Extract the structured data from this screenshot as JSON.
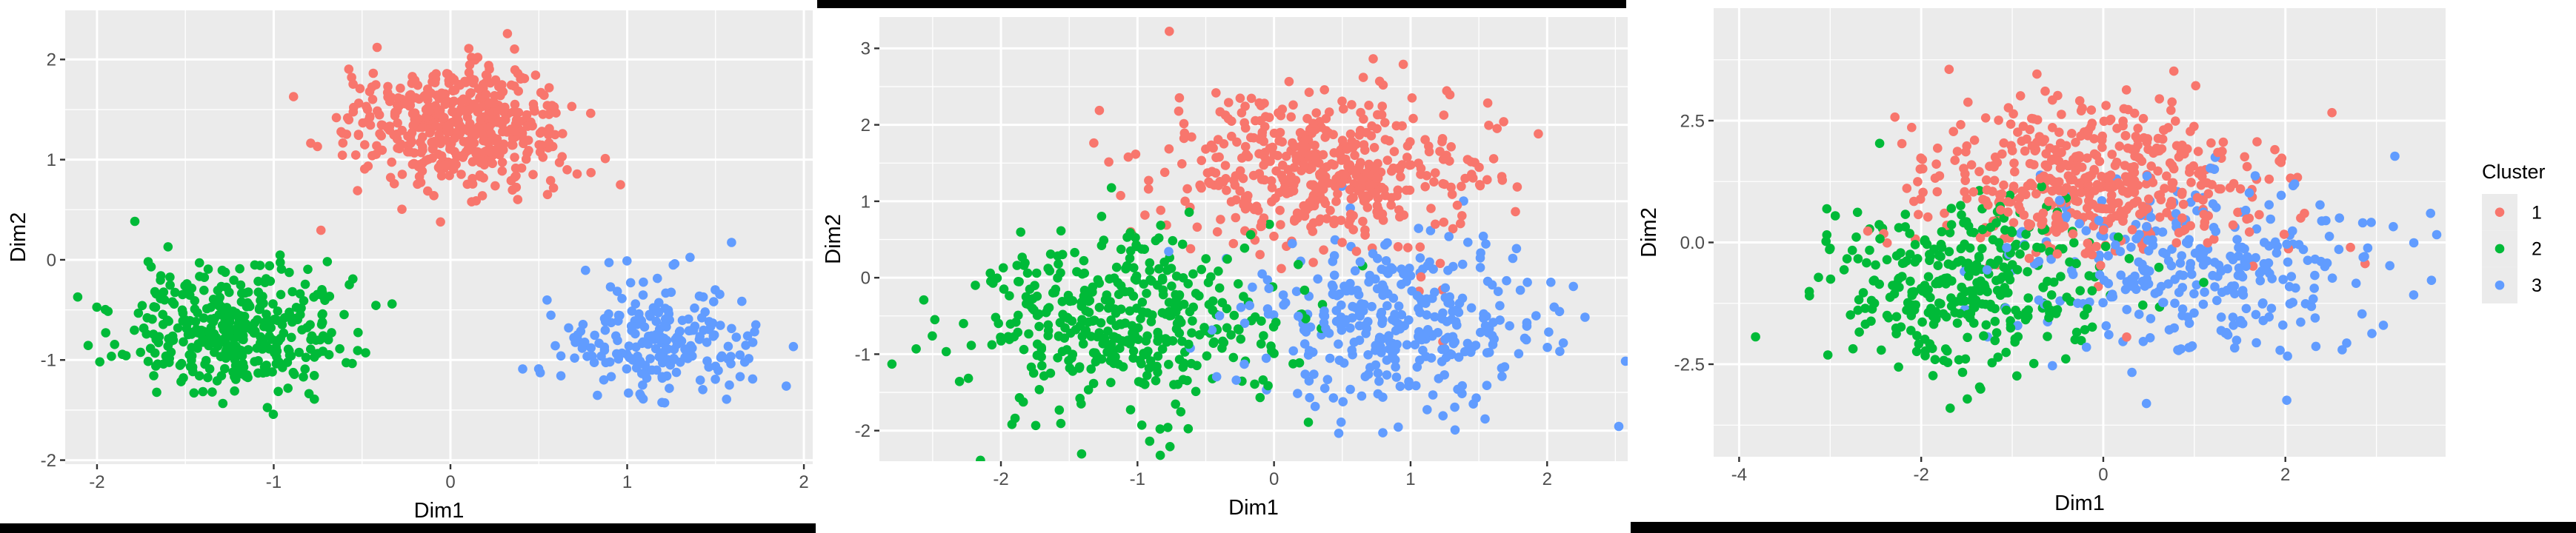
{
  "figure": {
    "background": "#ffffff",
    "panel_background": "#EBEBEB",
    "gridline_color": "#ffffff",
    "tick_text_color": "#4d4d4d",
    "axis_title_color": "#000000"
  },
  "chart_data": [
    {
      "id": "pca-clusters-separated",
      "type": "scatter",
      "xlabel": "Dim1",
      "ylabel": "Dim2",
      "x_ticks": [
        -2,
        -1,
        0,
        1,
        2
      ],
      "y_ticks": [
        2,
        1,
        0,
        -1,
        -2
      ],
      "x_tick_labels": [
        "-2",
        "-1",
        "0",
        "1",
        "2"
      ],
      "y_tick_labels": [
        "2",
        "1",
        "0",
        "-1",
        "-2"
      ],
      "x_range": [
        -2.18,
        2.05
      ],
      "y_range": [
        -2.04,
        2.49
      ],
      "grid": true,
      "legend": null,
      "clusters": [
        {
          "label": "1",
          "color": "#F8766D",
          "n": 490,
          "center": [
            0.07,
            1.33
          ],
          "sd": [
            0.3,
            0.32
          ],
          "stray_frac": 0.0,
          "stray_mult": 1.0,
          "seed": 11
        },
        {
          "label": "2",
          "color": "#00BA38",
          "n": 390,
          "center": [
            -1.24,
            -0.68
          ],
          "sd": [
            0.31,
            0.31
          ],
          "stray_frac": 0.0,
          "stray_mult": 1.0,
          "seed": 22
        },
        {
          "label": "3",
          "color": "#619CFF",
          "n": 215,
          "center": [
            1.17,
            -0.76
          ],
          "sd": [
            0.28,
            0.32
          ],
          "stray_frac": 0.0,
          "stray_mult": 1.0,
          "seed": 33
        }
      ]
    },
    {
      "id": "pca-clusters-overlapping",
      "type": "scatter",
      "xlabel": "Dim1",
      "ylabel": "Dim2",
      "x_ticks": [
        -2,
        -1,
        0,
        1,
        2
      ],
      "y_ticks": [
        3,
        2,
        1,
        0,
        -1,
        -2
      ],
      "x_tick_labels": [
        "-2",
        "-1",
        "0",
        "1",
        "2"
      ],
      "y_tick_labels": [
        "3",
        "2",
        "1",
        "0",
        "-1",
        "-2"
      ],
      "x_range": [
        -2.89,
        2.59
      ],
      "y_range": [
        -2.4,
        3.41
      ],
      "grid": true,
      "legend": null,
      "clusters": [
        {
          "label": "1",
          "color": "#F8766D",
          "n": 480,
          "center": [
            0.35,
            1.42
          ],
          "sd": [
            0.56,
            0.5
          ],
          "stray_frac": 0.015,
          "stray_mult": 1.7,
          "seed": 44
        },
        {
          "label": "2",
          "color": "#00BA38",
          "n": 420,
          "center": [
            -1.1,
            -0.55
          ],
          "sd": [
            0.56,
            0.58
          ],
          "stray_frac": 0.015,
          "stray_mult": 1.8,
          "seed": 55
        },
        {
          "label": "3",
          "color": "#619CFF",
          "n": 330,
          "center": [
            0.9,
            -0.58
          ],
          "sd": [
            0.54,
            0.55
          ],
          "stray_frac": 0.02,
          "stray_mult": 2.2,
          "seed": 66
        }
      ]
    },
    {
      "id": "pca-clusters-heavy-overlap",
      "type": "scatter",
      "xlabel": "Dim1",
      "ylabel": "Dim2",
      "x_ticks": [
        -4,
        -2,
        0,
        2
      ],
      "y_ticks": [
        2.5,
        0,
        -2.5
      ],
      "x_tick_labels": [
        "-4",
        "-2",
        "0",
        "2"
      ],
      "y_tick_labels": [
        "2.5",
        "0.0",
        "-2.5"
      ],
      "x_range": [
        -4.28,
        3.76
      ],
      "y_range": [
        -4.4,
        4.81
      ],
      "grid": true,
      "legend": {
        "title": "Cluster",
        "entries": [
          {
            "label": "1",
            "color": "#F8766D"
          },
          {
            "label": "2",
            "color": "#00BA38"
          },
          {
            "label": "3",
            "color": "#619CFF"
          }
        ]
      },
      "clusters": [
        {
          "label": "1",
          "color": "#F8766D",
          "n": 490,
          "center": [
            -0.1,
            1.22
          ],
          "sd": [
            0.95,
            0.82
          ],
          "stray_frac": 0.012,
          "stray_mult": 1.9,
          "seed": 77
        },
        {
          "label": "2",
          "color": "#00BA38",
          "n": 340,
          "center": [
            -1.5,
            -0.9
          ],
          "sd": [
            0.82,
            0.88
          ],
          "stray_frac": 0.012,
          "stray_mult": 1.8,
          "seed": 88
        },
        {
          "label": "3",
          "color": "#619CFF",
          "n": 310,
          "center": [
            1.1,
            -0.45
          ],
          "sd": [
            1.02,
            0.95
          ],
          "stray_frac": 0.012,
          "stray_mult": 1.6,
          "seed": 99
        }
      ]
    }
  ]
}
